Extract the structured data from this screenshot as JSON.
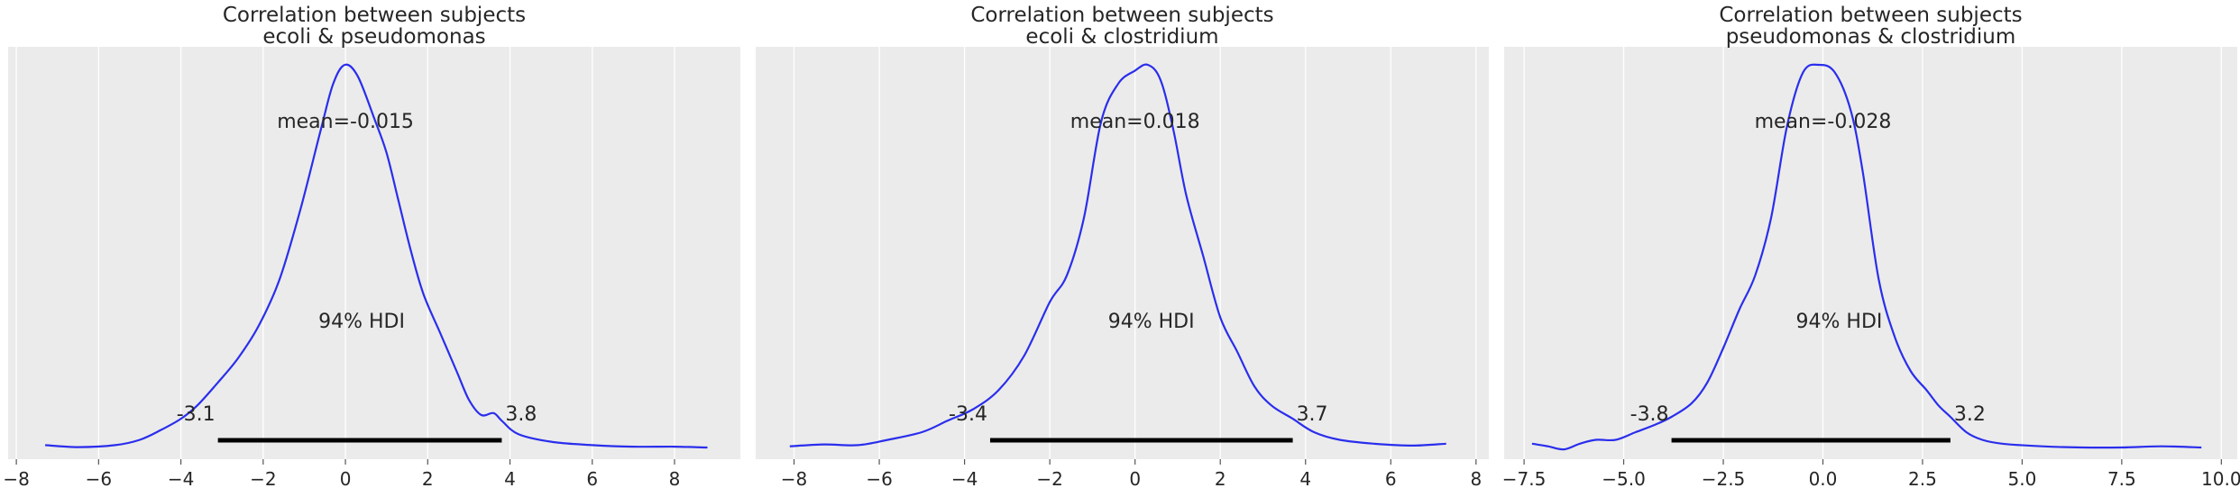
{
  "colors": {
    "curve": "#2a2eec",
    "panel_bg": "#ebebeb",
    "grid": "#ffffff",
    "hdi_bar": "#000000",
    "text": "#262626"
  },
  "chart_data": [
    {
      "type": "area",
      "title": [
        "Correlation between subjects",
        "ecoli & pseudomonas"
      ],
      "xlim": [
        -8.2,
        9.6
      ],
      "ticks": [
        -8,
        -6,
        -4,
        -2,
        0,
        2,
        4,
        6,
        8
      ],
      "tick_labels": [
        "−8",
        "−6",
        "−4",
        "−2",
        "0",
        "2",
        "4",
        "6",
        "8"
      ],
      "grid": true,
      "mean_label": "mean=-0.015",
      "hdi_label": "94% HDI",
      "hdi": [
        -3.1,
        3.8
      ],
      "hdi_low_label": "-3.1",
      "hdi_high_label": "3.8",
      "density": {
        "x": [
          -7.3,
          -6.5,
          -5.6,
          -5.0,
          -4.5,
          -4.0,
          -3.6,
          -3.1,
          -2.6,
          -2.1,
          -1.6,
          -1.1,
          -0.6,
          -0.3,
          -0.015,
          0.3,
          0.7,
          1.0,
          1.3,
          1.6,
          1.9,
          2.3,
          2.7,
          3.0,
          3.3,
          3.6,
          3.8,
          4.2,
          5.0,
          6.0,
          7.0,
          8.0,
          8.8
        ],
        "y": [
          0.006,
          0.001,
          0.006,
          0.02,
          0.045,
          0.075,
          0.11,
          0.17,
          0.235,
          0.32,
          0.44,
          0.62,
          0.83,
          0.95,
          1.0,
          0.97,
          0.86,
          0.77,
          0.64,
          0.51,
          0.4,
          0.3,
          0.2,
          0.125,
          0.085,
          0.09,
          0.07,
          0.035,
          0.015,
          0.006,
          0.002,
          0.002,
          0.0
        ]
      }
    },
    {
      "type": "area",
      "title": [
        "Correlation between subjects",
        "ecoli & clostridium"
      ],
      "xlim": [
        -8.9,
        8.3
      ],
      "ticks": [
        -8,
        -6,
        -4,
        -2,
        0,
        2,
        4,
        6,
        8
      ],
      "tick_labels": [
        "−8",
        "−6",
        "−4",
        "−2",
        "0",
        "2",
        "4",
        "6",
        "8"
      ],
      "grid": true,
      "mean_label": "mean=0.018",
      "hdi_label": "94% HDI",
      "hdi": [
        -3.4,
        3.7
      ],
      "hdi_low_label": "-3.4",
      "hdi_high_label": "3.7",
      "density": {
        "x": [
          -8.1,
          -7.3,
          -6.5,
          -5.8,
          -5.0,
          -4.4,
          -3.8,
          -3.2,
          -2.6,
          -2.0,
          -1.6,
          -1.2,
          -0.8,
          -0.4,
          0.0,
          0.3,
          0.6,
          0.9,
          1.2,
          1.6,
          2.0,
          2.4,
          2.8,
          3.2,
          3.7,
          4.2,
          4.8,
          5.6,
          6.5,
          7.3
        ],
        "y": [
          0.003,
          0.008,
          0.006,
          0.02,
          0.04,
          0.07,
          0.1,
          0.15,
          0.24,
          0.38,
          0.45,
          0.6,
          0.85,
          0.95,
          0.985,
          1.0,
          0.96,
          0.83,
          0.66,
          0.5,
          0.34,
          0.25,
          0.16,
          0.11,
          0.075,
          0.04,
          0.02,
          0.01,
          0.005,
          0.01
        ]
      }
    },
    {
      "type": "area",
      "title": [
        "Correlation between subjects",
        "pseudomonas & clostridium"
      ],
      "xlim": [
        -8.0,
        10.4
      ],
      "ticks": [
        -7.5,
        -5.0,
        -2.5,
        0.0,
        2.5,
        5.0,
        7.5,
        10.0
      ],
      "tick_labels": [
        "−7.5",
        "−5.0",
        "−2.5",
        "0.0",
        "2.5",
        "5.0",
        "7.5",
        "10.0"
      ],
      "grid": true,
      "mean_label": "mean=-0.028",
      "hdi_label": "94% HDI",
      "hdi": [
        -3.8,
        3.2
      ],
      "hdi_low_label": "-3.8",
      "hdi_high_label": "3.2",
      "density": {
        "x": [
          -7.3,
          -6.9,
          -6.5,
          -6.1,
          -5.7,
          -5.2,
          -4.7,
          -4.2,
          -3.8,
          -3.3,
          -2.9,
          -2.5,
          -2.1,
          -1.7,
          -1.3,
          -0.9,
          -0.5,
          -0.1,
          0.3,
          0.7,
          1.0,
          1.4,
          1.8,
          2.2,
          2.6,
          2.9,
          3.2,
          3.6,
          4.0,
          4.5,
          5.5,
          6.5,
          7.5,
          8.5,
          9.5
        ],
        "y": [
          0.01,
          0.003,
          -0.005,
          0.01,
          0.02,
          0.02,
          0.04,
          0.06,
          0.08,
          0.115,
          0.17,
          0.26,
          0.36,
          0.45,
          0.6,
          0.84,
          0.98,
          1.0,
          0.98,
          0.88,
          0.72,
          0.44,
          0.29,
          0.2,
          0.15,
          0.11,
          0.08,
          0.04,
          0.02,
          0.01,
          0.003,
          0.0,
          0.0,
          0.003,
          0.0
        ]
      }
    }
  ]
}
